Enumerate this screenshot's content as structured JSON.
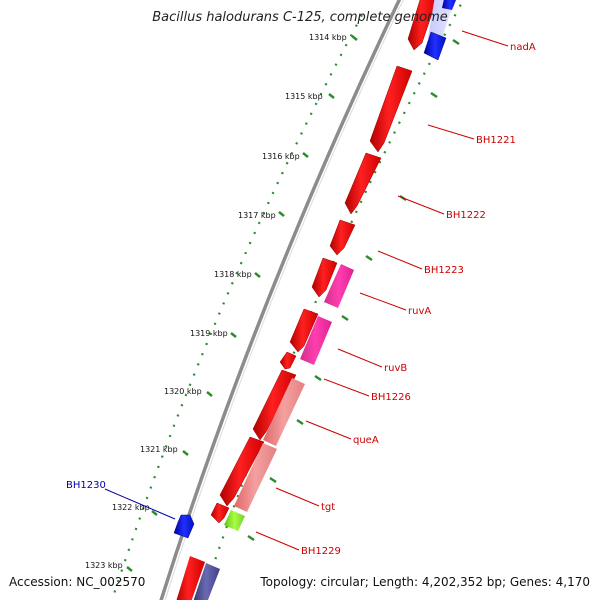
{
  "title": "Bacillus halodurans C-125, complete genome",
  "footer": {
    "accession": "Accession: NC_002570",
    "topology": "Topology: circular; Length: 4,202,352 bp; Genes: 4,170"
  },
  "colors": {
    "backbone": "#8c8c8c",
    "tick": "#2e8b2e",
    "cds_forward": "#ff0000",
    "cds_reverse": "#0000ee",
    "label_forward": "#cc0000",
    "label_reverse": "#0000aa"
  },
  "ticks": [
    "1314 kbp",
    "1315 kbp",
    "1316 kbp",
    "1317 kbp",
    "1318 kbp",
    "1319 kbp",
    "1320 kbp",
    "1321 kbp",
    "1322 kbp",
    "1323 kbp"
  ],
  "features": [
    {
      "label": "nadA",
      "strand": "forward"
    },
    {
      "label": "BH1221",
      "strand": "forward"
    },
    {
      "label": "BH1222",
      "strand": "forward"
    },
    {
      "label": "BH1223",
      "strand": "forward"
    },
    {
      "label": "ruvA",
      "strand": "forward"
    },
    {
      "label": "ruvB",
      "strand": "forward"
    },
    {
      "label": "BH1226",
      "strand": "forward"
    },
    {
      "label": "queA",
      "strand": "forward"
    },
    {
      "label": "tgt",
      "strand": "forward"
    },
    {
      "label": "BH1229",
      "strand": "forward"
    },
    {
      "label": "BH1230",
      "strand": "reverse"
    }
  ]
}
